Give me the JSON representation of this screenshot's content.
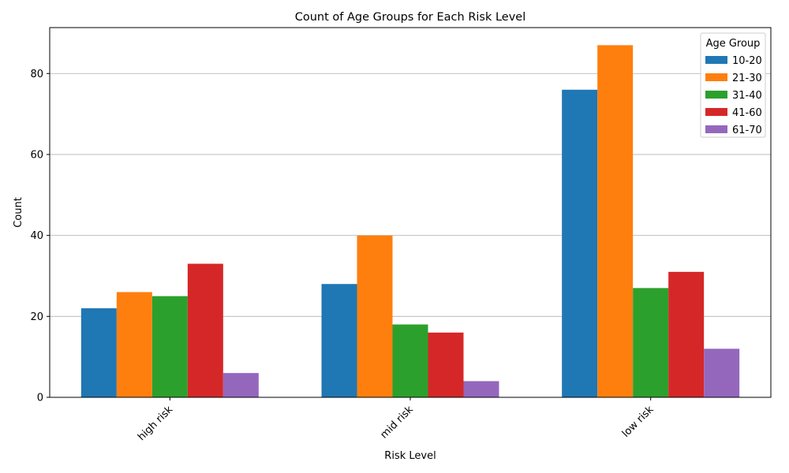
{
  "chart_data": {
    "type": "bar",
    "title": "Count of Age Groups for Each Risk Level",
    "xlabel": "Risk Level",
    "ylabel": "Count",
    "categories": [
      "high risk",
      "mid risk",
      "low risk"
    ],
    "series": [
      {
        "name": "10-20",
        "values": [
          22,
          28,
          76
        ],
        "color": "#1f77b4"
      },
      {
        "name": "21-30",
        "values": [
          26,
          40,
          87
        ],
        "color": "#ff7f0e"
      },
      {
        "name": "31-40",
        "values": [
          25,
          18,
          27
        ],
        "color": "#2ca02c"
      },
      {
        "name": "41-60",
        "values": [
          33,
          16,
          31
        ],
        "color": "#d62728"
      },
      {
        "name": "61-70",
        "values": [
          6,
          4,
          12
        ],
        "color": "#9467bd"
      }
    ],
    "ylim": [
      0,
      91.35
    ],
    "yticks": [
      0,
      20,
      40,
      60,
      80
    ],
    "grid": "y",
    "legend": {
      "title": "Age Group",
      "placement": "top-right"
    },
    "xtick_rotation": -45
  }
}
